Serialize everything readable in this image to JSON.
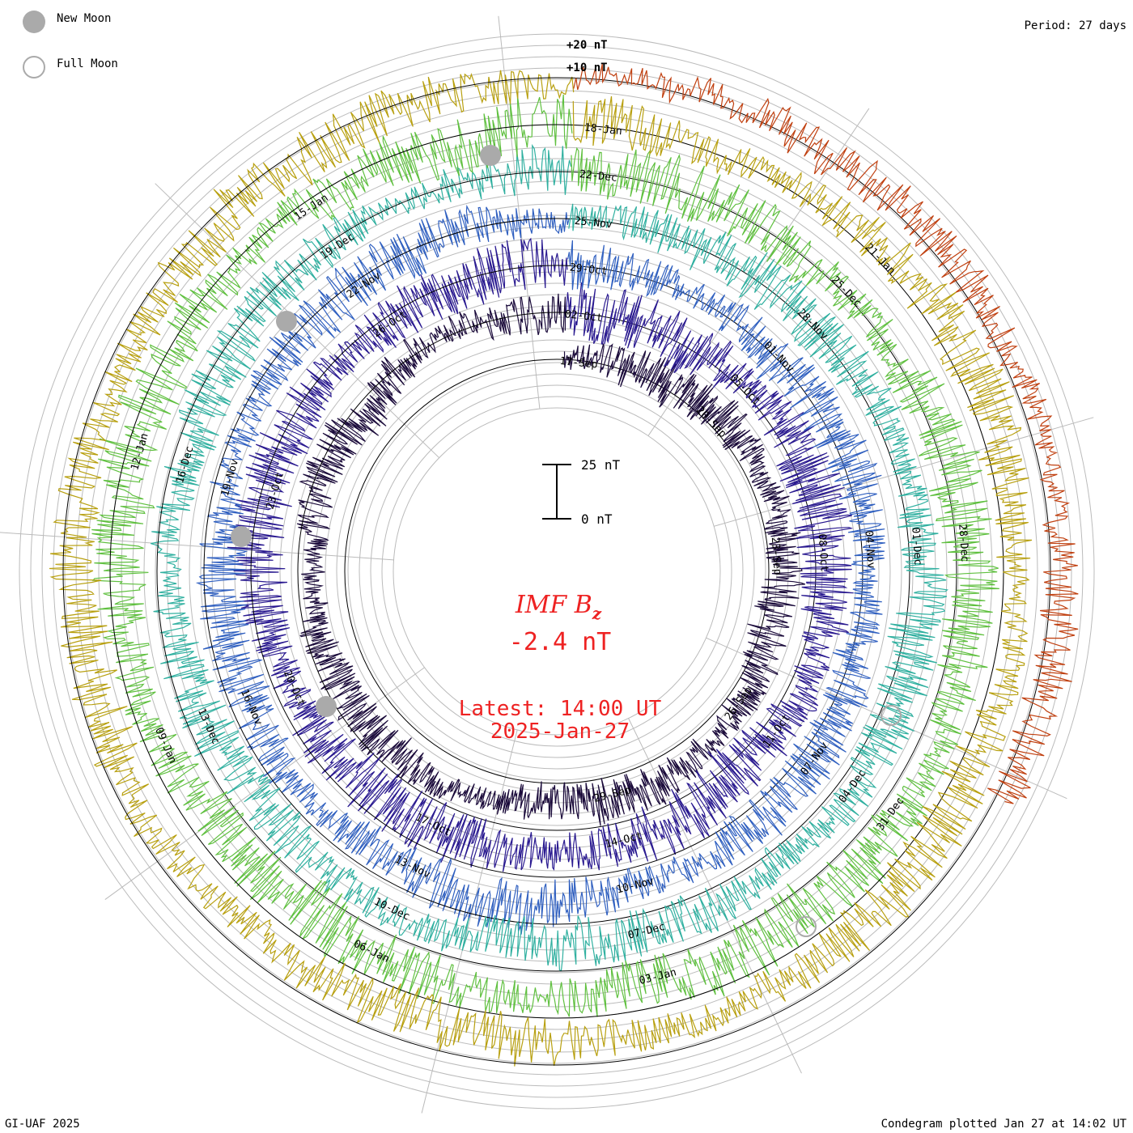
{
  "header": {
    "period": "Period: 27 days",
    "credit": "GI-UAF 2025",
    "plotted": "Condegram plotted Jan 27 at 14:02 UT"
  },
  "legend": {
    "new_moon": "New Moon",
    "full_moon": "Full Moon"
  },
  "center": {
    "title": "IMF B",
    "subscript": "z",
    "value": "-2.4 nT",
    "latest": "Latest: 14:00 UT",
    "date": "2025-Jan-27"
  },
  "scale_bar": {
    "top": "25 nT",
    "bottom": "0 nT"
  },
  "colors": {
    "accent": "#ee2222",
    "ring_grid": "#bbbbbb",
    "baseline": "#000000",
    "moon": "#aaaaaa"
  },
  "chart_data": {
    "type": "line",
    "title": "IMF Bz",
    "units": "nT",
    "period_days": 27,
    "grid_levels_nT": [
      "+10 nT",
      "+20 nT"
    ],
    "latest_value_nT": -2.4,
    "rotations": [
      {
        "name": "rotation-1",
        "color": "#1a0a3a",
        "labels": [
          "17-Sep",
          "20-Sep",
          "23-Sep",
          "26-Sep",
          "29-Sep"
        ],
        "amp_nT": 5
      },
      {
        "name": "rotation-2",
        "color": "#2a1a90",
        "labels": [
          "02-Oct",
          "05-Oct",
          "08-Oct",
          "11-Oct",
          "14-Oct",
          "17-Oct",
          "20-Oct",
          "23-Oct",
          "26-Oct"
        ],
        "amp_nT": 7
      },
      {
        "name": "rotation-3",
        "color": "#3060c0",
        "labels": [
          "29-Oct",
          "01-Nov",
          "04-Nov",
          "07-Nov",
          "10-Nov",
          "13-Nov",
          "16-Nov",
          "19-Nov",
          "22-Nov"
        ],
        "amp_nT": 6
      },
      {
        "name": "rotation-4",
        "color": "#30b0a0",
        "labels": [
          "25-Nov",
          "28-Nov",
          "01-Dec",
          "04-Dec",
          "07-Dec",
          "10-Dec",
          "13-Dec",
          "16-Dec",
          "19-Dec"
        ],
        "amp_nT": 6
      },
      {
        "name": "rotation-5",
        "color": "#60c040",
        "labels": [
          "22-Dec",
          "25-Dec",
          "28-Dec",
          "31-Dec",
          "03-Jan",
          "06-Jan",
          "09-Jan",
          "12-Jan",
          "15-Jan"
        ],
        "amp_nT": 7
      },
      {
        "name": "rotation-6",
        "color": "#b8a010",
        "labels": [
          "18-Jan",
          "21-Jan"
        ],
        "amp_nT": 6
      },
      {
        "name": "rotation-7",
        "color": "#c04010",
        "labels": [],
        "amp_nT": 5
      }
    ],
    "moon_phases": [
      "New Moon",
      "Full Moon"
    ]
  }
}
